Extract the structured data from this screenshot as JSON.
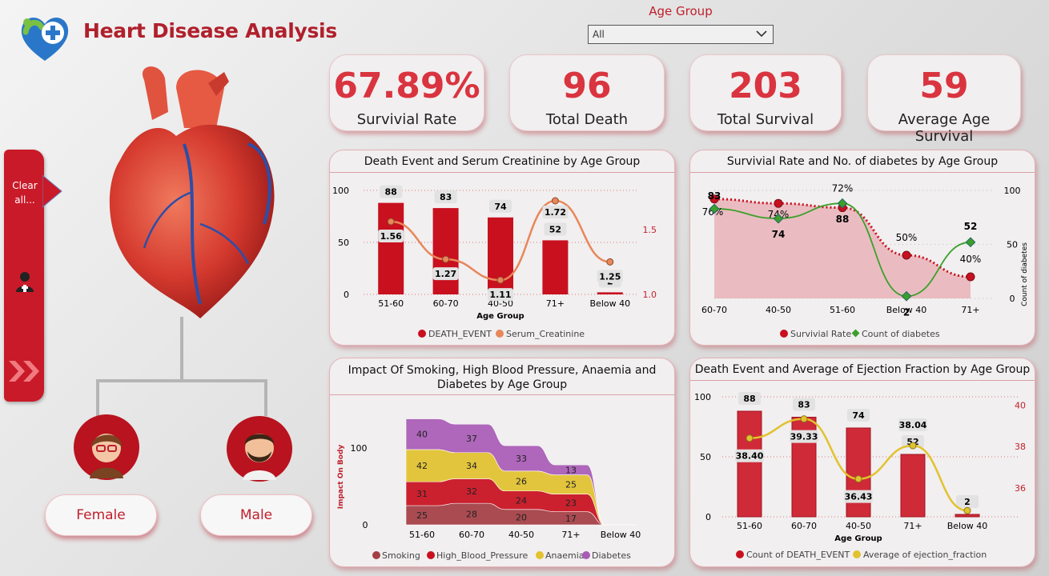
{
  "header": {
    "title": "Heart Disease Analysis",
    "logo_icon": "heart-plus-logo-icon"
  },
  "slicer": {
    "label": "Age Group",
    "value": "All"
  },
  "sidebar": {
    "clear_label_1": "Clear",
    "clear_label_2": "all...",
    "doctor_icon": "doctor-icon",
    "expand_icon": "double-chevron-right-icon"
  },
  "kpis": [
    {
      "value": "67.89%",
      "label": "Survivial Rate"
    },
    {
      "value": "96",
      "label": "Total Death"
    },
    {
      "value": "203",
      "label": "Total Survival"
    },
    {
      "value": "59",
      "label": "Average Age Survival"
    }
  ],
  "gender": {
    "female": "Female",
    "male": "Male"
  },
  "colors": {
    "red": "#c8101f",
    "orange": "#e8875a",
    "green": "#3aa02a",
    "yellow": "#e2c22e",
    "purple": "#a95cb6",
    "maroon": "#a33e44"
  },
  "chart_data": [
    {
      "type": "bar",
      "title": "Death Event and Serum Creatinine by Age Group",
      "xlabel": "Age Group",
      "categories": [
        "51-60",
        "60-70",
        "40-50",
        "71+",
        "Below 40"
      ],
      "series": [
        {
          "name": "DEATH_EVENT",
          "values": [
            88,
            83,
            74,
            52,
            2
          ]
        },
        {
          "name": "Serum_Creatinine",
          "type": "line",
          "axis": "right",
          "values": [
            1.56,
            1.27,
            1.11,
            1.72,
            1.25
          ]
        }
      ],
      "ylim": [
        0,
        100
      ],
      "y2lim": [
        1.0,
        1.8
      ],
      "yticks": [
        "0",
        "50",
        "100"
      ],
      "y2ticks": [
        "1.0",
        "1.5"
      ]
    },
    {
      "type": "area",
      "title": "Survivial Rate and No. of diabetes by Age Group",
      "y2label": "Count of diabetes",
      "categories": [
        "60-70",
        "40-50",
        "51-60",
        "Below 40",
        "71+"
      ],
      "series": [
        {
          "name": "Survivial Rate",
          "values": [
            76,
            74,
            72,
            50,
            40
          ],
          "labels": [
            "76%",
            "74%",
            "72%",
            "50%",
            "40%"
          ]
        },
        {
          "name": "Count of diabetes",
          "type": "line",
          "axis": "right",
          "values": [
            83,
            74,
            88,
            2,
            52
          ]
        }
      ],
      "yticks_right": [
        "0",
        "50",
        "100"
      ]
    },
    {
      "type": "area",
      "title": "Impact Of Smoking, High Blood Pressure, Anaemia and Diabetes by Age Group",
      "ylabel": "Impact On Body",
      "categories": [
        "51-60",
        "60-70",
        "40-50",
        "71+",
        "Below 40"
      ],
      "series": [
        {
          "name": "Smoking",
          "values": [
            25,
            28,
            20,
            17,
            0
          ]
        },
        {
          "name": "High_Blood_Pressure",
          "values": [
            31,
            32,
            24,
            23,
            0
          ]
        },
        {
          "name": "Anaemia",
          "values": [
            42,
            34,
            26,
            25,
            0
          ]
        },
        {
          "name": "Diabetes",
          "values": [
            40,
            37,
            33,
            13,
            0
          ]
        }
      ],
      "yticks": [
        "0",
        "100"
      ]
    },
    {
      "type": "bar",
      "title": "Death Event and Average of Ejection Fraction by Age Group",
      "xlabel": "Age Group",
      "categories": [
        "51-60",
        "60-70",
        "40-50",
        "71+",
        "Below 40"
      ],
      "series": [
        {
          "name": "Count of DEATH_EVENT",
          "values": [
            88,
            83,
            74,
            52,
            2
          ]
        },
        {
          "name": "Average of ejection_fraction",
          "type": "line",
          "axis": "right",
          "values": [
            38.4,
            39.33,
            36.43,
            38.04,
            34.9
          ],
          "labels": [
            "38.40",
            "39.33",
            "36.43",
            "38.04",
            ""
          ]
        }
      ],
      "ylim": [
        0,
        100
      ],
      "yticks": [
        "0",
        "50",
        "100"
      ],
      "y2ticks": [
        "36",
        "38",
        "40"
      ]
    }
  ]
}
